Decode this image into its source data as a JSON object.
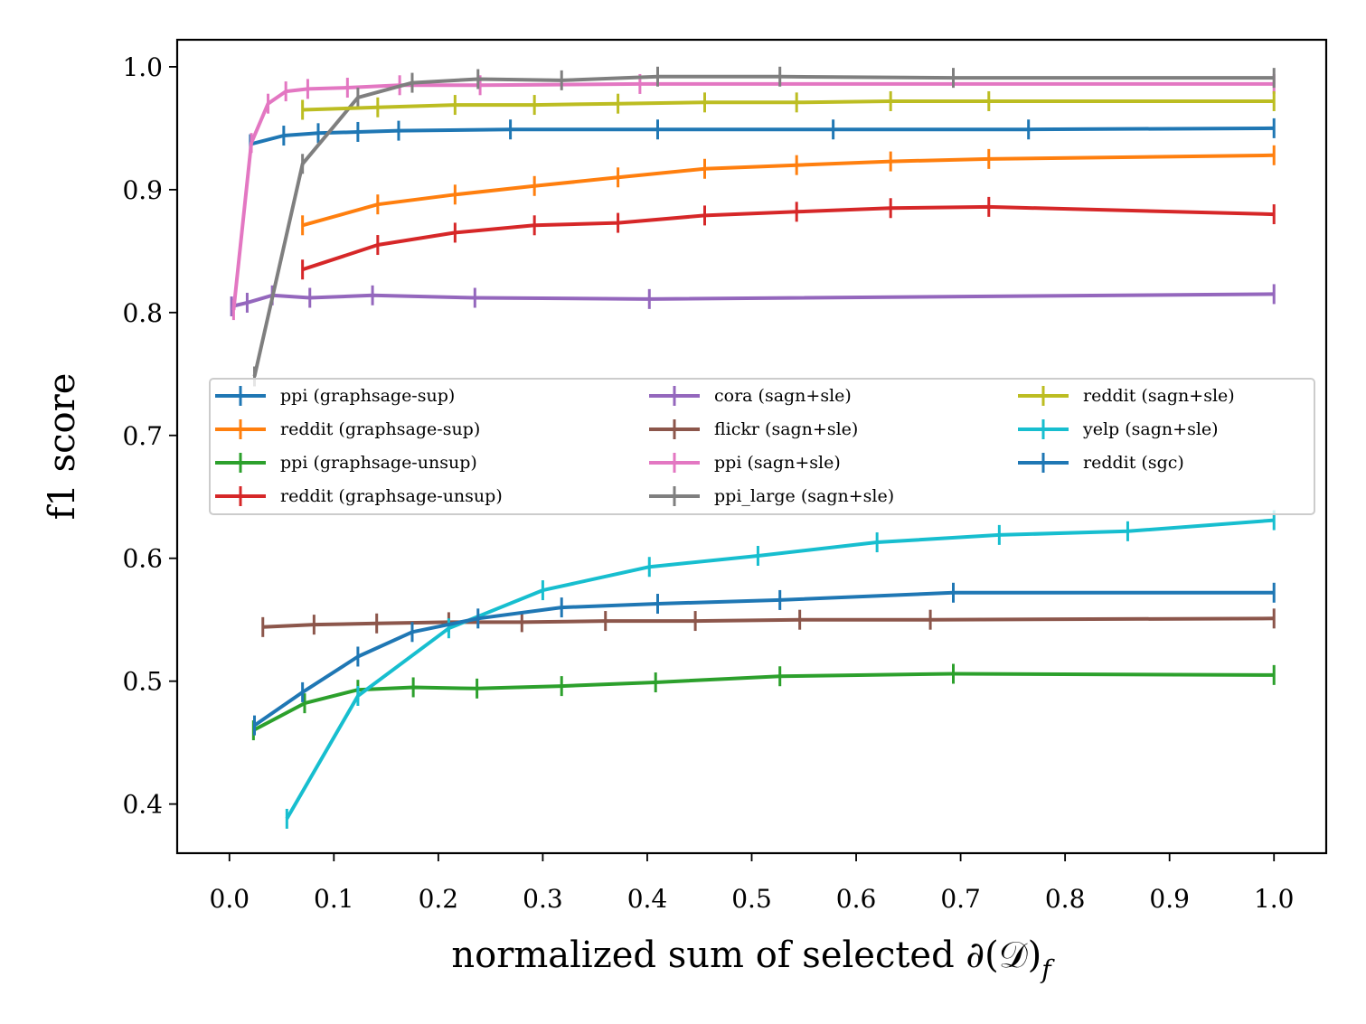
{
  "chart_data": {
    "type": "line",
    "title": "",
    "xlabel": "normalized sum of selected ∂(𝒟)",
    "xlabel_subscript": "f",
    "ylabel": "f1 score",
    "xlim": [
      -0.05,
      1.05
    ],
    "ylim": [
      0.36,
      1.022
    ],
    "xticks": [
      "0.0",
      "0.1",
      "0.2",
      "0.3",
      "0.4",
      "0.5",
      "0.6",
      "0.7",
      "0.8",
      "0.9",
      "1.0"
    ],
    "yticks": [
      "0.4",
      "0.5",
      "0.6",
      "0.7",
      "0.8",
      "0.9",
      "1.0"
    ],
    "legend_position": "center",
    "series": [
      {
        "name": "ppi (graphsage-sup)",
        "color": "#1f77b4",
        "x": [
          0.02,
          0.052,
          0.085,
          0.123,
          0.162,
          0.269,
          0.41,
          0.578,
          0.765,
          1.0
        ],
        "y": [
          0.937,
          0.944,
          0.946,
          0.947,
          0.948,
          0.949,
          0.949,
          0.949,
          0.949,
          0.95
        ]
      },
      {
        "name": "reddit (graphsage-sup)",
        "color": "#ff7f0e",
        "x": [
          0.07,
          0.142,
          0.216,
          0.292,
          0.372,
          0.455,
          0.543,
          0.633,
          0.727,
          1.0
        ],
        "y": [
          0.871,
          0.888,
          0.896,
          0.903,
          0.91,
          0.917,
          0.92,
          0.923,
          0.925,
          0.928
        ]
      },
      {
        "name": "ppi (graphsage-unsup)",
        "color": "#2ca02c",
        "x": [
          0.023,
          0.072,
          0.123,
          0.176,
          0.237,
          0.318,
          0.408,
          0.527,
          0.693,
          1.0
        ],
        "y": [
          0.46,
          0.482,
          0.493,
          0.495,
          0.494,
          0.496,
          0.499,
          0.504,
          0.506,
          0.505
        ]
      },
      {
        "name": "reddit (graphsage-unsup)",
        "color": "#d62728",
        "x": [
          0.07,
          0.142,
          0.216,
          0.292,
          0.372,
          0.455,
          0.543,
          0.633,
          0.727,
          1.0
        ],
        "y": [
          0.835,
          0.855,
          0.865,
          0.871,
          0.873,
          0.879,
          0.882,
          0.885,
          0.886,
          0.88
        ]
      },
      {
        "name": "cora (sagn+sle)",
        "color": "#9467bd",
        "x": [
          0.002,
          0.017,
          0.041,
          0.077,
          0.137,
          0.235,
          0.402,
          1.0
        ],
        "y": [
          0.805,
          0.808,
          0.814,
          0.812,
          0.814,
          0.812,
          0.811,
          0.815
        ]
      },
      {
        "name": "flickr (sagn+sle)",
        "color": "#8c564b",
        "x": [
          0.032,
          0.081,
          0.141,
          0.21,
          0.28,
          0.36,
          0.446,
          0.546,
          0.671,
          1.0
        ],
        "y": [
          0.544,
          0.546,
          0.547,
          0.548,
          0.548,
          0.549,
          0.549,
          0.55,
          0.55,
          0.551
        ]
      },
      {
        "name": "ppi (sagn+sle)",
        "color": "#e377c2",
        "x": [
          0.004,
          0.021,
          0.037,
          0.054,
          0.075,
          0.113,
          0.163,
          0.24,
          0.393,
          1.0
        ],
        "y": [
          0.802,
          0.938,
          0.97,
          0.98,
          0.982,
          0.983,
          0.985,
          0.985,
          0.986,
          0.986
        ]
      },
      {
        "name": "ppi_large (sagn+sle)",
        "color": "#7f7f7f",
        "x": [
          0.024,
          0.07,
          0.123,
          0.175,
          0.238,
          0.318,
          0.41,
          0.527,
          0.693,
          1.0
        ],
        "y": [
          0.748,
          0.921,
          0.975,
          0.987,
          0.99,
          0.989,
          0.992,
          0.992,
          0.991,
          0.991
        ]
      },
      {
        "name": "reddit (sagn+sle)",
        "color": "#bcbd22",
        "x": [
          0.07,
          0.142,
          0.216,
          0.292,
          0.372,
          0.455,
          0.543,
          0.633,
          0.727,
          1.0
        ],
        "y": [
          0.965,
          0.967,
          0.969,
          0.969,
          0.97,
          0.971,
          0.971,
          0.972,
          0.972,
          0.972
        ]
      },
      {
        "name": "yelp (sagn+sle)",
        "color": "#17becf",
        "x": [
          0.055,
          0.123,
          0.21,
          0.3,
          0.402,
          0.506,
          0.62,
          0.737,
          0.86,
          1.0
        ],
        "y": [
          0.388,
          0.488,
          0.543,
          0.574,
          0.593,
          0.602,
          0.613,
          0.619,
          0.622,
          0.631
        ]
      },
      {
        "name": "reddit (sgc)",
        "color": "#1f77b4",
        "x": [
          0.024,
          0.07,
          0.123,
          0.175,
          0.238,
          0.318,
          0.41,
          0.527,
          0.693,
          1.0
        ],
        "y": [
          0.464,
          0.491,
          0.52,
          0.54,
          0.551,
          0.56,
          0.563,
          0.566,
          0.572,
          0.572
        ]
      }
    ]
  }
}
